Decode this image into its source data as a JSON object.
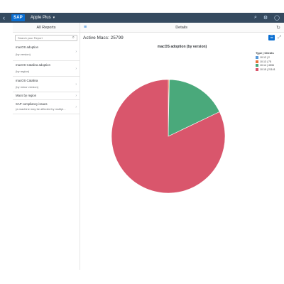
{
  "shell": {
    "logo": "SAP",
    "app_title": "Apple Plus",
    "back_icon": "chevron-left-icon",
    "right_icons": [
      "search-icon",
      "settings-icon",
      "user-icon"
    ]
  },
  "left": {
    "header": "All Reports",
    "search_placeholder": "Search your Report",
    "items": [
      {
        "title": "macOS adoption",
        "subtitle": "(by version)"
      },
      {
        "title": "macOS Catalina adoption",
        "subtitle": "(by region)"
      },
      {
        "title": "macOS Catalina",
        "subtitle": "(by minor version)"
      },
      {
        "title": "Macs by region",
        "subtitle": ""
      },
      {
        "title": "SAP compliancy issues",
        "subtitle": "(a machine may be affected by multipl..."
      }
    ]
  },
  "right": {
    "header": "Details",
    "active_label": "Active Macs: 25799"
  },
  "chart_data": {
    "type": "pie",
    "title": "macOS adoption (by version)",
    "legend_title": "Type | Clients",
    "legend_position": "top-right",
    "series": [
      {
        "name": "10.12 | 2",
        "value": 2,
        "color": "#5899da"
      },
      {
        "name": "10.13 | 75",
        "value": 75,
        "color": "#e8743b"
      },
      {
        "name": "10.14 | 4536",
        "value": 4536,
        "color": "#4aa97b"
      },
      {
        "name": "10.15 | 21141",
        "value": 21141,
        "color": "#d9566c"
      }
    ]
  },
  "colors": {
    "shell_bar": "#354a5f",
    "accent": "#0a6ed1"
  }
}
